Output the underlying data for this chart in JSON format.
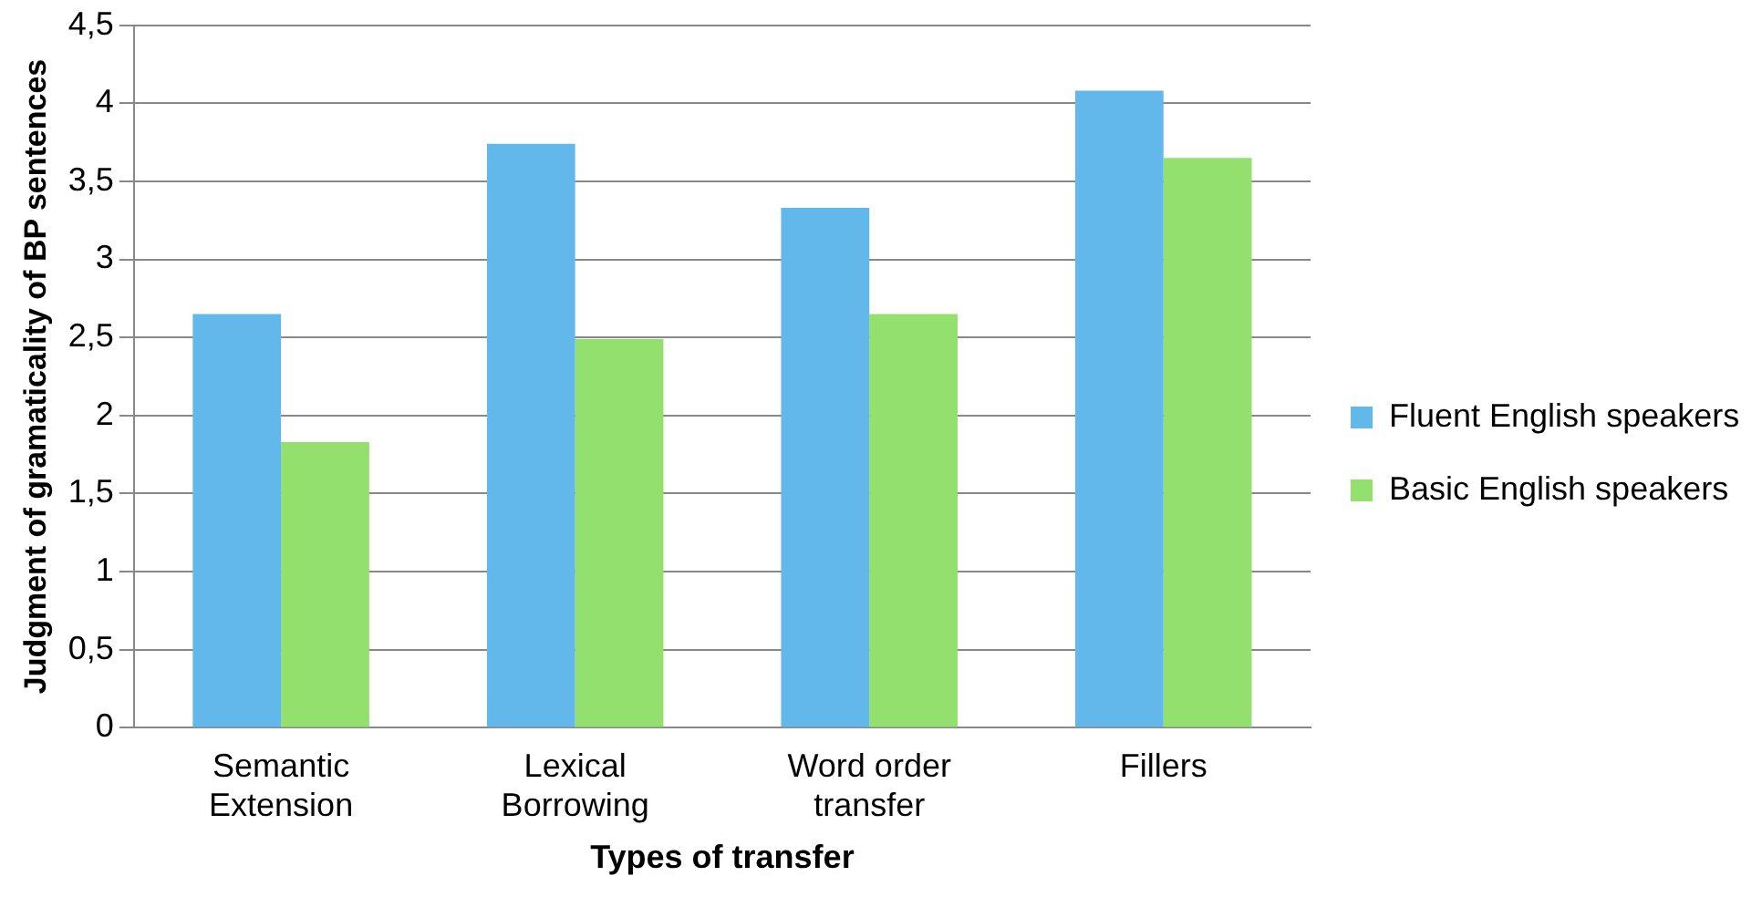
{
  "chart_data": {
    "type": "bar",
    "xlabel": "Types of transfer",
    "ylabel": "Judgment of gramaticality of BP sentences",
    "categories": [
      "Semantic\nExtension",
      "Lexical\nBorrowing",
      "Word order\ntransfer",
      "Fillers"
    ],
    "series": [
      {
        "name": "Fluent English speakers",
        "color": "#62b8ea",
        "values": [
          2.65,
          3.74,
          3.33,
          4.08
        ]
      },
      {
        "name": "Basic English speakers",
        "color": "#93e06e",
        "values": [
          1.83,
          2.49,
          2.65,
          3.65
        ]
      }
    ],
    "ylim": [
      0,
      4.5
    ],
    "yticks": [
      0,
      {
        "value": 0.5,
        "label": "0,5"
      },
      1,
      {
        "value": 1.5,
        "label": "1,5"
      },
      2,
      {
        "value": 2.5,
        "label": "2,5"
      },
      3,
      {
        "value": 3.5,
        "label": "3,5"
      },
      4,
      {
        "value": 4.5,
        "label": "4,5"
      }
    ],
    "grid": "y",
    "legend": "right"
  }
}
